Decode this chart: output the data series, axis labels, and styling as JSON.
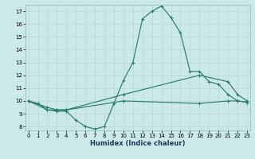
{
  "xlabel": "Humidex (Indice chaleur)",
  "line1_x": [
    0,
    1,
    2,
    3,
    4,
    5,
    6,
    7,
    8,
    9,
    10,
    11,
    12,
    13,
    14,
    15,
    16,
    17,
    18,
    19,
    20,
    21,
    22,
    23
  ],
  "line1_y": [
    10.0,
    9.8,
    9.3,
    9.2,
    9.2,
    8.5,
    8.0,
    7.8,
    8.0,
    9.8,
    11.6,
    13.0,
    16.4,
    17.0,
    17.4,
    16.5,
    15.3,
    12.3,
    12.3,
    11.5,
    11.3,
    10.5,
    10.0,
    9.9
  ],
  "line2_x": [
    0,
    2,
    3,
    4,
    10,
    18,
    21,
    22,
    23
  ],
  "line2_y": [
    10.0,
    9.3,
    9.3,
    9.3,
    10.5,
    12.0,
    11.5,
    10.5,
    10.0
  ],
  "line3_x": [
    0,
    2,
    3,
    4,
    10,
    18,
    21,
    22,
    23
  ],
  "line3_y": [
    10.0,
    9.5,
    9.3,
    9.3,
    10.0,
    9.8,
    10.0,
    10.0,
    9.9
  ],
  "line_color": "#2A7B6F",
  "bg_color": "#CBE9E9",
  "grid_color": "#B8D5D5",
  "ylim_min": 8,
  "ylim_max": 17.5,
  "xlim_min": -0.3,
  "xlim_max": 23.3,
  "yticks": [
    8,
    9,
    10,
    11,
    12,
    13,
    14,
    15,
    16,
    17
  ],
  "xticks": [
    0,
    1,
    2,
    3,
    4,
    5,
    6,
    7,
    8,
    9,
    10,
    11,
    12,
    13,
    14,
    15,
    16,
    17,
    18,
    19,
    20,
    21,
    22,
    23
  ]
}
